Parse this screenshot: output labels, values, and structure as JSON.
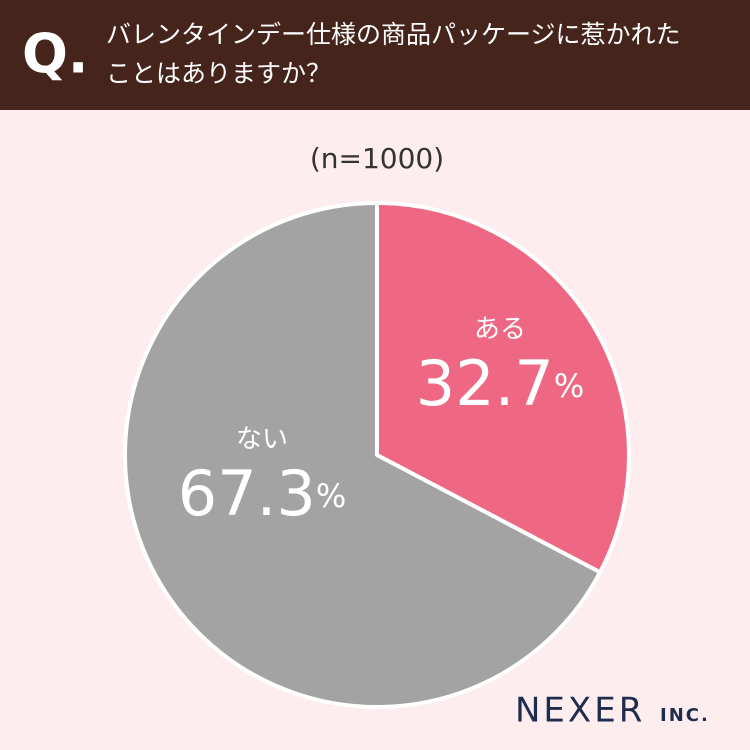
{
  "chart_data": {
    "type": "pie",
    "question_label": "Q.",
    "title": [
      "バレンタインデー仕様の商品パッケージに惹かれた",
      "ことはありますか？"
    ],
    "subtitle": "(n=1000)",
    "categories": [
      "ある",
      "ない"
    ],
    "values": [
      32.7,
      67.3
    ],
    "value_labels": [
      "32.7%",
      "67.3%"
    ],
    "colors": [
      "#ee6783",
      "#a3a3a3"
    ],
    "source": [
      "NEXER",
      "INC."
    ]
  }
}
